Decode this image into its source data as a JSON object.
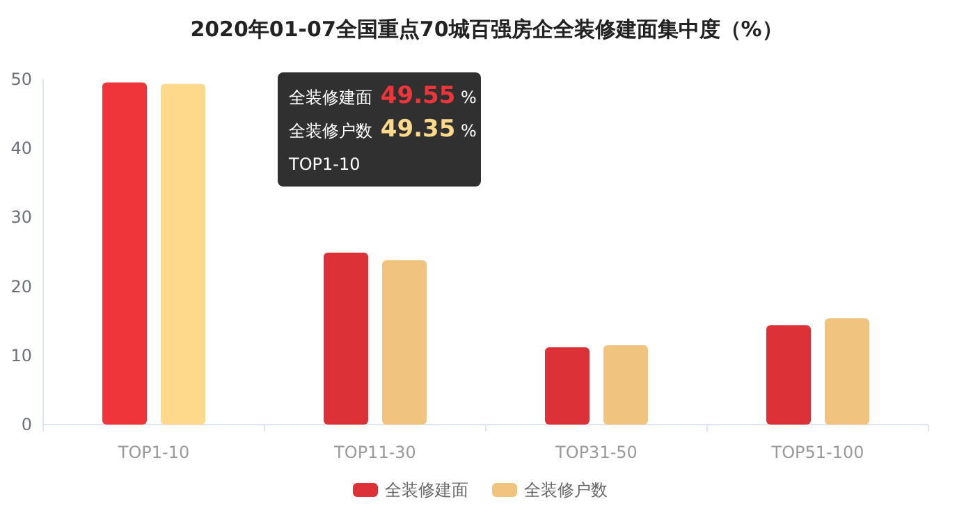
{
  "chart_data": {
    "type": "bar",
    "title": "2020年01-07全国重点70城百强房企全装修建面集中度（%）",
    "categories": [
      "TOP1-10",
      "TOP11-30",
      "TOP31-50",
      "TOP51-100"
    ],
    "series": [
      {
        "name": "全装修建面",
        "color": "#dc3136",
        "colors": [
          "#ef3539",
          "#dc3136",
          "#dc3136",
          "#dc3136"
        ],
        "values": [
          49.55,
          24.9,
          11.2,
          14.4
        ]
      },
      {
        "name": "全装修户数",
        "color": "#f0c47f",
        "colors": [
          "#fed88b",
          "#f0c47f",
          "#f0c47f",
          "#f0c47f"
        ],
        "values": [
          49.35,
          23.8,
          11.5,
          15.4
        ]
      }
    ],
    "ylim": [
      0,
      50
    ],
    "yticks": [
      0,
      10,
      20,
      30,
      40,
      50
    ],
    "grid": false,
    "legend": "bottom",
    "annotations": [
      "全装修建面 49.55 %",
      "全装修户数 49.35 %",
      "TOP1-10"
    ]
  }
}
